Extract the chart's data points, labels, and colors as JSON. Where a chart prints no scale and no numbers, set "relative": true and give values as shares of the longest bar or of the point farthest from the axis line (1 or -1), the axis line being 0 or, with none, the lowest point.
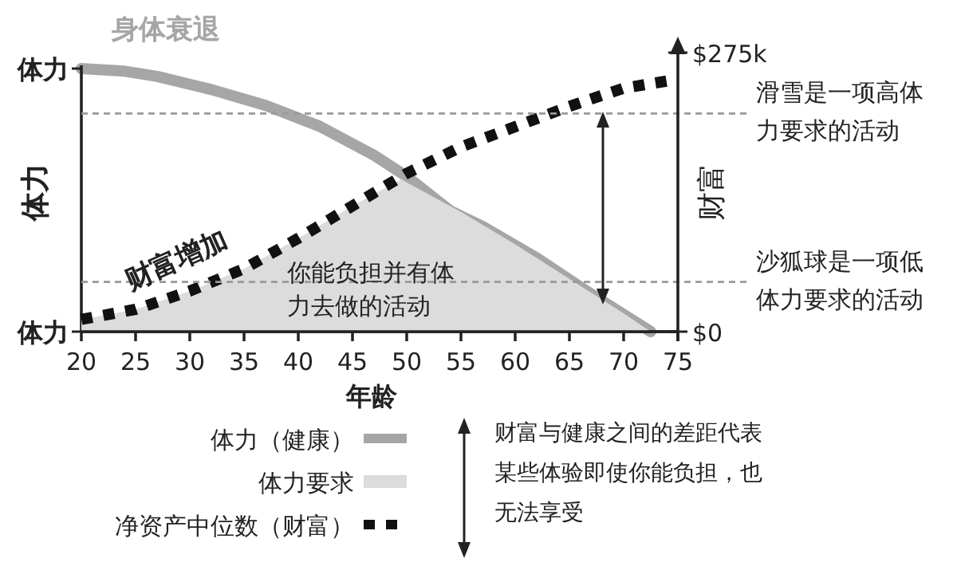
{
  "chart_data": [
    {
      "type": "line",
      "relative": true,
      "ylabel": "体力",
      "xlim": [
        20,
        75
      ],
      "xticks": [
        20,
        25,
        30,
        35,
        40,
        45,
        50,
        55,
        60,
        65,
        70,
        75
      ],
      "tick_labels": false,
      "legend": "bottom",
      "series": [
        {
          "name": "体力（健康）",
          "color": "#a6a6a6",
          "line_style": "solid",
          "x": [
            20,
            24,
            27,
            32,
            37,
            42,
            47,
            50,
            54,
            57,
            62,
            66,
            72.5
          ],
          "values": [
            1,
            0.99,
            0.97,
            0.92,
            0.86,
            0.78,
            0.67,
            0.59,
            0.46,
            0.4,
            0.28,
            0.17,
            0
          ]
        }
      ],
      "annotations": [
        "体力",
        "体力",
        "身体衰退"
      ]
    },
    {
      "type": "line",
      "xlabel": "年龄",
      "y2label": "财富",
      "xlim": [
        20,
        75
      ],
      "xticks": [
        20,
        25,
        30,
        35,
        40,
        45,
        50,
        55,
        60,
        65,
        70,
        75
      ],
      "y2lim": [
        0,
        275
      ],
      "y2ticks": [
        {
          "value": 0,
          "label": "$0"
        },
        {
          "value": 275,
          "label": "$275k"
        }
      ],
      "legend": "bottom",
      "series": [
        {
          "name": "体力要求",
          "type": "area",
          "color": "#dcdcdc",
          "axis": "y2",
          "x": [
            20,
            25,
            30,
            35,
            40,
            45,
            49.5,
            55,
            60,
            65,
            70,
            72.5
          ],
          "values": [
            12,
            22,
            40,
            62,
            92,
            124,
            150,
            118,
            86,
            52,
            18,
            0
          ]
        },
        {
          "name": "净资产中位数（财富）",
          "color": "#111111",
          "line_style": "dashed",
          "axis": "y2",
          "x": [
            20,
            25,
            30,
            35,
            40,
            45,
            50,
            55,
            60,
            65,
            70,
            74
          ],
          "values": [
            12,
            22,
            40,
            62,
            92,
            124,
            156,
            182,
            202,
            222,
            240,
            247
          ]
        }
      ],
      "ref_lines": [
        {
          "axis": "y2",
          "value": 215,
          "label": "滑雪是一项高体力要求的活动",
          "color": "#999999",
          "line_style": "dashed"
        },
        {
          "axis": "y2",
          "value": 49,
          "label": "沙狐球是一项低体力要求的活动",
          "color": "#999999",
          "line_style": "dashed"
        }
      ],
      "annotations": [
        "财富增加",
        "你能负担并有体力去做的活动",
        "财富与健康之间的差距代表某些体验即使你能负担，也无法享受"
      ]
    }
  ]
}
